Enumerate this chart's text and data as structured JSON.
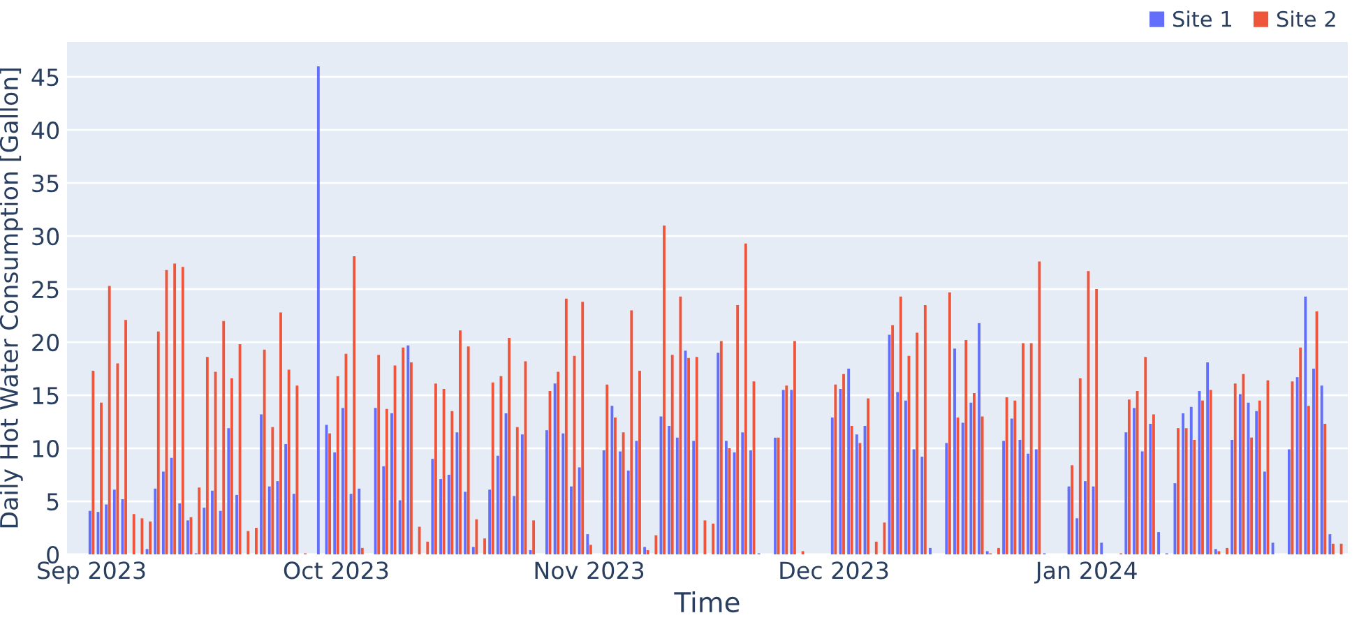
{
  "chart_data": {
    "type": "bar",
    "xlabel": "Time",
    "ylabel": "Daily Hot Water Consumption [Gallon]",
    "x": [
      "2023-09-01",
      "2023-09-02",
      "2023-09-03",
      "2023-09-04",
      "2023-09-05",
      "2023-09-06",
      "2023-09-07",
      "2023-09-08",
      "2023-09-09",
      "2023-09-10",
      "2023-09-11",
      "2023-09-12",
      "2023-09-13",
      "2023-09-14",
      "2023-09-15",
      "2023-09-16",
      "2023-09-17",
      "2023-09-18",
      "2023-09-19",
      "2023-09-20",
      "2023-09-21",
      "2023-09-22",
      "2023-09-23",
      "2023-09-24",
      "2023-09-25",
      "2023-09-26",
      "2023-09-27",
      "2023-09-29",
      "2023-09-30",
      "2023-10-01",
      "2023-10-02",
      "2023-10-03",
      "2023-10-04",
      "2023-10-06",
      "2023-10-07",
      "2023-10-08",
      "2023-10-09",
      "2023-10-10",
      "2023-10-11",
      "2023-10-12",
      "2023-10-13",
      "2023-10-14",
      "2023-10-15",
      "2023-10-16",
      "2023-10-17",
      "2023-10-18",
      "2023-10-19",
      "2023-10-20",
      "2023-10-21",
      "2023-10-22",
      "2023-10-23",
      "2023-10-24",
      "2023-10-25",
      "2023-10-27",
      "2023-10-28",
      "2023-10-29",
      "2023-10-30",
      "2023-10-31",
      "2023-11-01",
      "2023-11-03",
      "2023-11-04",
      "2023-11-05",
      "2023-11-06",
      "2023-11-07",
      "2023-11-08",
      "2023-11-09",
      "2023-11-10",
      "2023-11-11",
      "2023-11-12",
      "2023-11-13",
      "2023-11-14",
      "2023-11-15",
      "2023-11-16",
      "2023-11-17",
      "2023-11-18",
      "2023-11-19",
      "2023-11-20",
      "2023-11-21",
      "2023-11-22",
      "2023-11-24",
      "2023-11-25",
      "2023-11-26",
      "2023-11-27",
      "2023-12-01",
      "2023-12-02",
      "2023-12-03",
      "2023-12-04",
      "2023-12-05",
      "2023-12-06",
      "2023-12-07",
      "2023-12-08",
      "2023-12-09",
      "2023-12-10",
      "2023-12-11",
      "2023-12-12",
      "2023-12-13",
      "2023-12-15",
      "2023-12-16",
      "2023-12-17",
      "2023-12-18",
      "2023-12-19",
      "2023-12-20",
      "2023-12-21",
      "2023-12-22",
      "2023-12-23",
      "2023-12-24",
      "2023-12-25",
      "2023-12-26",
      "2023-12-27",
      "2023-12-30",
      "2023-12-31",
      "2024-01-01",
      "2024-01-02",
      "2024-01-03",
      "2024-01-05",
      "2024-01-06",
      "2024-01-07",
      "2024-01-08",
      "2024-01-09",
      "2024-01-10",
      "2024-01-11",
      "2024-01-12",
      "2024-01-13",
      "2024-01-14",
      "2024-01-15",
      "2024-01-16",
      "2024-01-17",
      "2024-01-18",
      "2024-01-19",
      "2024-01-20",
      "2024-01-21",
      "2024-01-22",
      "2024-01-23",
      "2024-01-24",
      "2024-01-26",
      "2024-01-27",
      "2024-01-28",
      "2024-01-29",
      "2024-01-30",
      "2024-01-31",
      "2024-02-01"
    ],
    "series": [
      {
        "name": "Site 1",
        "color": "#636efa",
        "values": [
          4.1,
          4.0,
          4.7,
          6.1,
          5.2,
          null,
          null,
          0.5,
          6.2,
          7.8,
          9.1,
          4.8,
          3.2,
          0.1,
          4.4,
          6.0,
          4.1,
          11.9,
          5.6,
          null,
          null,
          13.2,
          6.4,
          6.9,
          10.4,
          5.7,
          null,
          46.0,
          12.2,
          9.6,
          13.8,
          5.7,
          6.2,
          13.8,
          8.3,
          13.3,
          5.1,
          19.7,
          null,
          null,
          9.0,
          7.1,
          7.5,
          11.5,
          5.9,
          0.7,
          null,
          6.1,
          9.3,
          13.3,
          5.5,
          11.3,
          0.4,
          11.7,
          16.1,
          11.4,
          6.4,
          8.2,
          1.9,
          9.8,
          14.0,
          9.7,
          7.9,
          10.7,
          0.7,
          null,
          13.0,
          12.1,
          11.0,
          19.2,
          10.7,
          null,
          null,
          19.0,
          10.7,
          9.6,
          11.5,
          9.8,
          0.1,
          11.0,
          15.5,
          15.5,
          null,
          12.9,
          15.6,
          17.5,
          11.3,
          12.1,
          null,
          null,
          20.7,
          15.3,
          14.5,
          9.9,
          9.2,
          0.6,
          10.5,
          19.4,
          12.4,
          14.3,
          21.8,
          0.3,
          null,
          10.7,
          12.8,
          10.8,
          9.5,
          9.9,
          0.1,
          6.4,
          3.4,
          6.9,
          6.4,
          1.1,
          null,
          11.5,
          13.8,
          9.7,
          12.3,
          2.1,
          0.1,
          6.7,
          13.3,
          13.9,
          15.4,
          18.1,
          0.5,
          null,
          10.8,
          15.1,
          14.3,
          13.5,
          7.8,
          1.1,
          9.9,
          16.7,
          24.3,
          17.5,
          15.9,
          1.9,
          null
        ]
      },
      {
        "name": "Site 2",
        "color": "#ef553b",
        "values": [
          17.3,
          14.3,
          25.3,
          18.0,
          22.1,
          3.8,
          3.4,
          3.1,
          21.0,
          26.8,
          27.4,
          27.1,
          3.5,
          6.3,
          18.6,
          17.2,
          22.0,
          16.6,
          19.8,
          2.2,
          2.5,
          19.3,
          12.0,
          22.8,
          17.4,
          15.9,
          0.1,
          null,
          11.4,
          16.8,
          18.9,
          28.1,
          0.6,
          18.8,
          13.7,
          17.8,
          19.5,
          18.1,
          2.6,
          1.2,
          16.1,
          15.6,
          13.5,
          21.1,
          19.6,
          3.3,
          1.5,
          16.2,
          16.8,
          20.4,
          12.0,
          18.2,
          3.2,
          15.4,
          17.2,
          24.1,
          18.7,
          23.8,
          0.9,
          16.0,
          12.9,
          11.5,
          23.0,
          17.3,
          0.4,
          1.8,
          31.0,
          18.8,
          24.3,
          18.5,
          18.6,
          3.2,
          2.9,
          20.1,
          10.0,
          23.5,
          29.3,
          16.3,
          null,
          11.0,
          15.9,
          20.1,
          0.3,
          16.0,
          17.0,
          12.1,
          10.5,
          14.7,
          1.2,
          3.0,
          21.6,
          24.3,
          18.7,
          20.9,
          23.5,
          null,
          24.7,
          12.9,
          20.2,
          15.2,
          13.0,
          0.1,
          0.6,
          14.8,
          14.5,
          19.9,
          19.9,
          27.6,
          null,
          8.4,
          16.6,
          26.7,
          25.0,
          null,
          0.1,
          14.6,
          15.4,
          18.6,
          13.2,
          null,
          null,
          11.9,
          11.9,
          10.8,
          14.5,
          15.5,
          0.3,
          0.6,
          16.1,
          17.0,
          11.0,
          14.5,
          16.4,
          null,
          16.3,
          19.5,
          14.0,
          22.9,
          12.3,
          1.0,
          1.0
        ]
      }
    ],
    "xlim": [
      "2023-08-29",
      "2024-02-02"
    ],
    "xticks": [
      {
        "value": "2023-09-01",
        "label": "Sep 2023"
      },
      {
        "value": "2023-10-01",
        "label": "Oct 2023"
      },
      {
        "value": "2023-11-01",
        "label": "Nov 2023"
      },
      {
        "value": "2023-12-01",
        "label": "Dec 2023"
      },
      {
        "value": "2024-01-01",
        "label": "Jan 2024"
      }
    ],
    "ylim": [
      0,
      48.3
    ],
    "yticks": [
      0,
      5,
      10,
      15,
      20,
      25,
      30,
      35,
      40,
      45
    ],
    "grid": "y",
    "legend": "top right"
  }
}
